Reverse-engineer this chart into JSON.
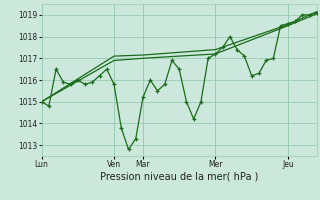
{
  "xlabel": "Pression niveau de la mer( hPa )",
  "bg_color": "#cce8dc",
  "grid_color": "#99ccb3",
  "line_color": "#1a6b1a",
  "ylim": [
    1012.5,
    1019.5
  ],
  "yticks": [
    1013,
    1014,
    1015,
    1016,
    1017,
    1018,
    1019
  ],
  "day_labels": [
    "Lun",
    "Ven",
    "Mar",
    "Mer",
    "Jeu"
  ],
  "day_positions": [
    0,
    60,
    84,
    144,
    204
  ],
  "vline_positions": [
    60,
    84,
    144,
    204
  ],
  "xlim": [
    0,
    228
  ],
  "x_main": [
    0,
    6,
    12,
    18,
    24,
    30,
    36,
    42,
    48,
    54,
    60,
    66,
    72,
    78,
    84,
    90,
    96,
    102,
    108,
    114,
    120,
    126,
    132,
    138,
    144,
    150,
    156,
    162,
    168,
    174,
    180,
    186,
    192,
    198,
    204,
    210,
    216,
    222,
    228
  ],
  "y_main": [
    1015.0,
    1014.8,
    1016.5,
    1015.9,
    1015.8,
    1016.0,
    1015.8,
    1015.9,
    1016.2,
    1016.5,
    1015.8,
    1013.8,
    1012.8,
    1013.3,
    1015.2,
    1016.0,
    1015.5,
    1015.8,
    1016.9,
    1016.5,
    1015.0,
    1014.2,
    1015.0,
    1017.0,
    1017.2,
    1017.5,
    1018.0,
    1017.4,
    1017.1,
    1016.2,
    1016.3,
    1016.9,
    1017.0,
    1018.5,
    1018.6,
    1018.7,
    1019.0,
    1019.0,
    1019.1
  ],
  "x_env1": [
    0,
    60,
    84,
    144,
    204,
    228
  ],
  "y_env1": [
    1015.0,
    1016.9,
    1017.0,
    1017.2,
    1018.5,
    1019.05
  ],
  "x_env2": [
    0,
    60,
    84,
    144,
    204,
    228
  ],
  "y_env2": [
    1015.0,
    1017.1,
    1017.15,
    1017.4,
    1018.55,
    1019.15
  ]
}
